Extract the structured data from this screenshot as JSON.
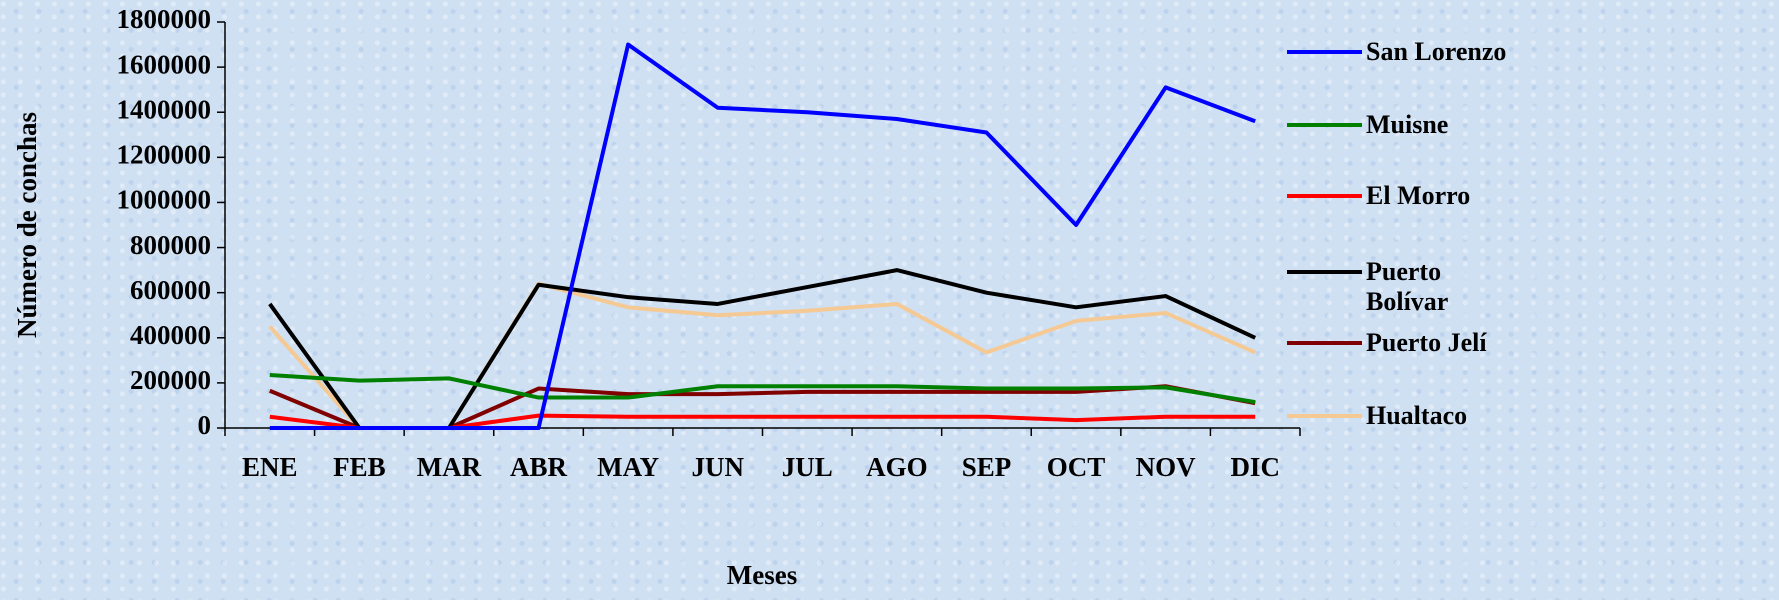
{
  "chart_data": {
    "type": "line",
    "y_label": "Número de conchas",
    "x_label": "Meses",
    "categories": [
      "ENE",
      "FEB",
      "MAR",
      "ABR",
      "MAY",
      "JUN",
      "JUL",
      "AGO",
      "SEP",
      "OCT",
      "NOV",
      "DIC"
    ],
    "ylim": [
      0,
      1800000
    ],
    "yticks": [
      0,
      200000,
      400000,
      600000,
      800000,
      1000000,
      1200000,
      1400000,
      1600000,
      1800000
    ],
    "grid": false,
    "legend": "right",
    "series": [
      {
        "name": "San Lorenzo",
        "color": "#0000ff",
        "values": [
          0,
          0,
          0,
          0,
          1700000,
          1420000,
          1400000,
          1370000,
          1310000,
          900000,
          1510000,
          1360000
        ]
      },
      {
        "name": "Muisne",
        "color": "#008000",
        "values": [
          235000,
          210000,
          220000,
          135000,
          135000,
          185000,
          185000,
          185000,
          175000,
          175000,
          180000,
          115000
        ]
      },
      {
        "name": "El Morro",
        "color": "#ff0000",
        "values": [
          50000,
          0,
          0,
          55000,
          50000,
          50000,
          50000,
          50000,
          50000,
          35000,
          50000,
          50000
        ]
      },
      {
        "name": "Puerto Bolívar",
        "color": "#000000",
        "values": [
          550000,
          0,
          0,
          635000,
          580000,
          550000,
          625000,
          700000,
          600000,
          535000,
          585000,
          400000
        ]
      },
      {
        "name": "Puerto Jelí",
        "color": "#800000",
        "values": [
          165000,
          0,
          0,
          175000,
          150000,
          150000,
          160000,
          160000,
          160000,
          160000,
          185000,
          110000
        ]
      },
      {
        "name": "Hualtaco",
        "color": "#f5c994",
        "values": [
          450000,
          0,
          0,
          640000,
          535000,
          500000,
          520000,
          550000,
          335000,
          475000,
          510000,
          335000
        ]
      }
    ]
  }
}
